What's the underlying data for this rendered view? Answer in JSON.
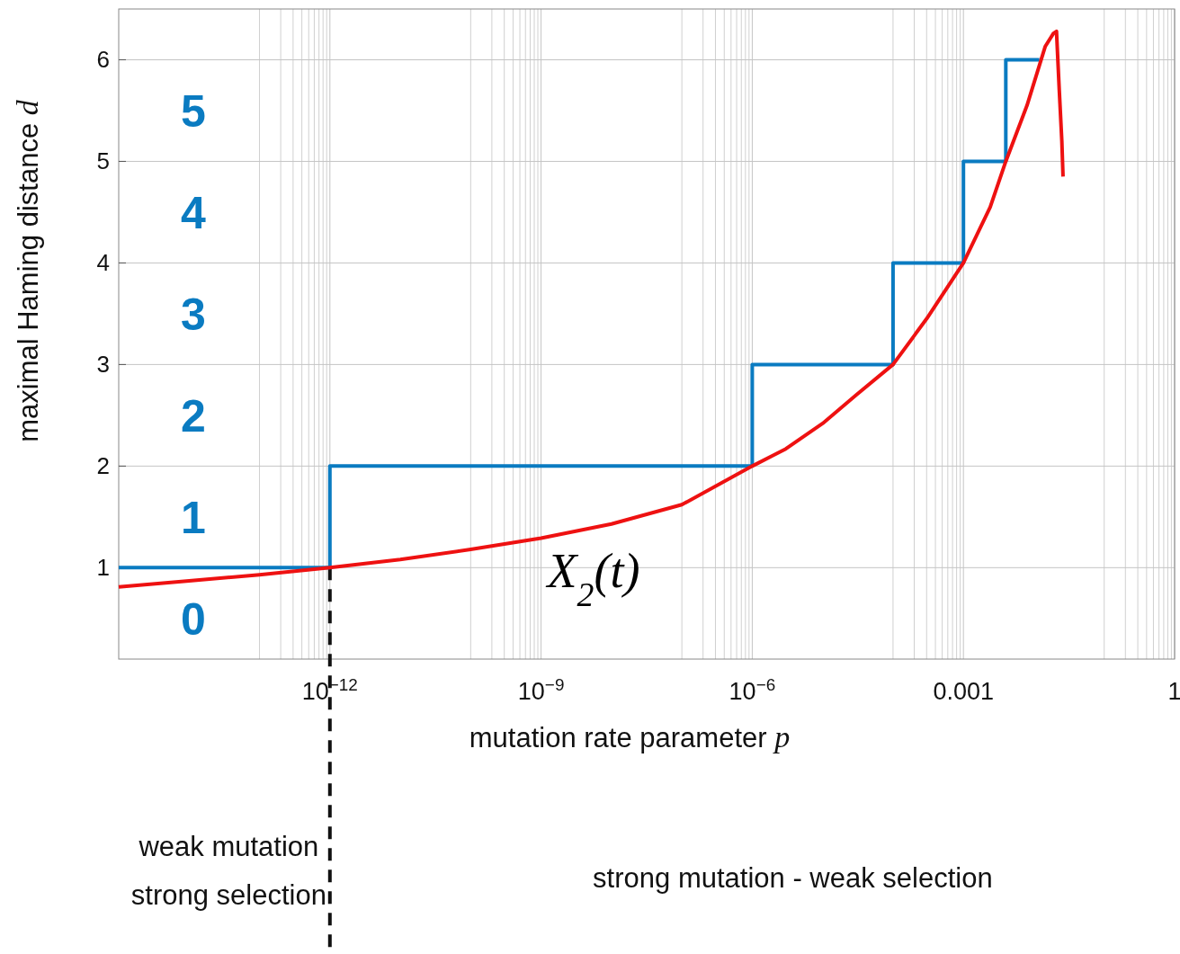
{
  "chart_data": {
    "type": "line",
    "xlabel": "mutation rate parameter p",
    "ylabel": "maximal Haming distance d",
    "log": "x",
    "grid": true,
    "xlim": [
      1e-15,
      1
    ],
    "ylim": [
      0.1,
      6.5
    ],
    "xticks": [
      {
        "value": 1e-12,
        "label": "10$^{−12}$"
      },
      {
        "value": 1e-09,
        "label": "10$^{−9}$"
      },
      {
        "value": 1e-06,
        "label": "10$^{−6}$"
      },
      {
        "value": 0.001,
        "label": "0.001"
      },
      1
    ],
    "yticks": [
      1,
      2,
      3,
      4,
      5,
      6
    ],
    "series": [
      {
        "type": "step",
        "color": "#0a7bc1",
        "x": [
          1e-15,
          1e-12,
          1e-06,
          0.0001,
          0.001,
          0.004,
          0.012
        ],
        "values": [
          1,
          2,
          3,
          4,
          5,
          6,
          6
        ]
      },
      {
        "type": "line",
        "color": "#ee1111",
        "x": [
          1e-15,
          1e-14,
          1e-13,
          1e-12,
          1e-11,
          1e-10,
          1e-09,
          1e-08,
          1e-07,
          1e-06,
          3e-06,
          1e-05,
          3e-05,
          0.0001,
          0.0003,
          0.001,
          0.0024,
          0.004,
          0.008,
          0.0145,
          0.019,
          0.021,
          0.023,
          0.025,
          0.026
        ],
        "values": [
          0.81,
          0.87,
          0.93,
          1,
          1.08,
          1.18,
          1.29,
          1.43,
          1.62,
          2,
          2.17,
          2.42,
          2.7,
          3,
          3.45,
          4,
          4.55,
          5,
          5.55,
          6.13,
          6.26,
          6.28,
          5.7,
          5.2,
          4.85
        ]
      }
    ],
    "ref_lines": [
      {
        "axis": "x",
        "value": 1e-12,
        "color": "#111111",
        "line_style": "dashed"
      }
    ],
    "annotations": [
      "0",
      "1",
      "2",
      "3",
      "4",
      "5",
      "X$_{2}$(t)",
      "weak mutation\nstrong selection",
      "strong mutation - weak selection"
    ]
  }
}
